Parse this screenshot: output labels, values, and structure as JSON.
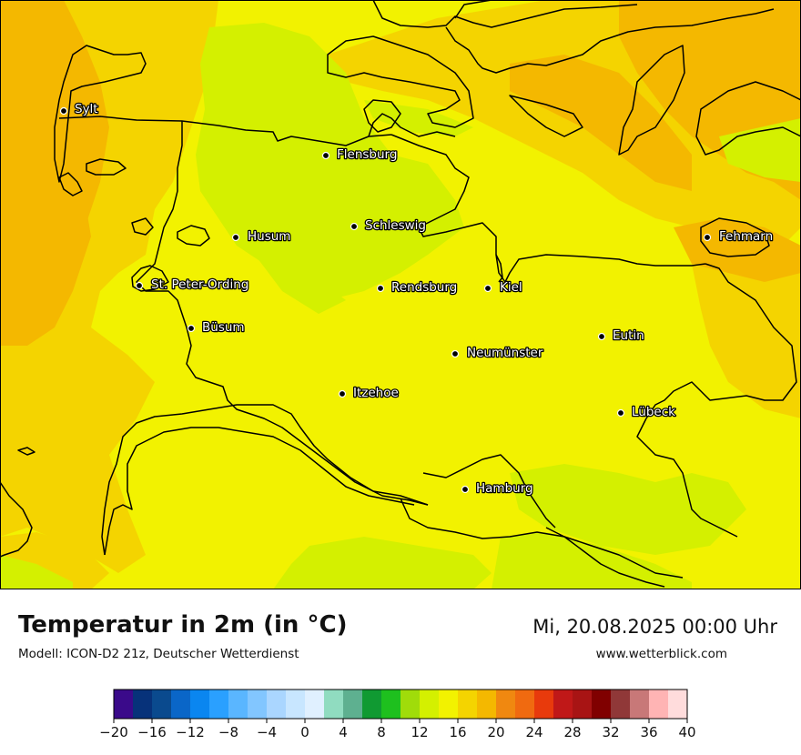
{
  "header": {
    "title": "Temperatur in 2m (in °C)",
    "model": "Modell: ICON-D2 21z, Deutscher Wetterdienst",
    "datetime": "Mi, 20.08.2025 00:00 Uhr",
    "website": "www.wetterblick.com"
  },
  "cities": [
    {
      "name": "Sylt"
    },
    {
      "name": "Flensburg"
    },
    {
      "name": "Schleswig"
    },
    {
      "name": "Husum"
    },
    {
      "name": "Fehmarn"
    },
    {
      "name": "St. Peter-Ording"
    },
    {
      "name": "Rendsburg"
    },
    {
      "name": "Kiel"
    },
    {
      "name": "Büsum"
    },
    {
      "name": "Eutin"
    },
    {
      "name": "Neumünster"
    },
    {
      "name": "Itzehoe"
    },
    {
      "name": "Lübeck"
    },
    {
      "name": "Hamburg"
    }
  ],
  "legend": {
    "ticks": [
      "−20",
      "−16",
      "−12",
      "−8",
      "−4",
      "0",
      "4",
      "8",
      "12",
      "16",
      "20",
      "24",
      "28",
      "32",
      "36",
      "40"
    ],
    "colors": [
      "#3a0a8a",
      "#07327a",
      "#0a4a8e",
      "#0a66c8",
      "#0a86f0",
      "#2aa0ff",
      "#5ab6ff",
      "#82c6ff",
      "#aad6ff",
      "#c8e6ff",
      "#e0f0ff",
      "#90dcc0",
      "#5eb090",
      "#109a32",
      "#1ec01e",
      "#a0dc0a",
      "#d4f000",
      "#f2f200",
      "#f4d400",
      "#f4b800",
      "#f08810",
      "#f06a10",
      "#e83a0c",
      "#c01818",
      "#a81414",
      "#800000",
      "#903838",
      "#c87878",
      "#ffb4b4",
      "#ffdcdc"
    ]
  },
  "colors": {
    "yellow": "#f2f200",
    "light_green": "#d4f000",
    "amber": "#f4d400",
    "orange": "#f4b800"
  }
}
